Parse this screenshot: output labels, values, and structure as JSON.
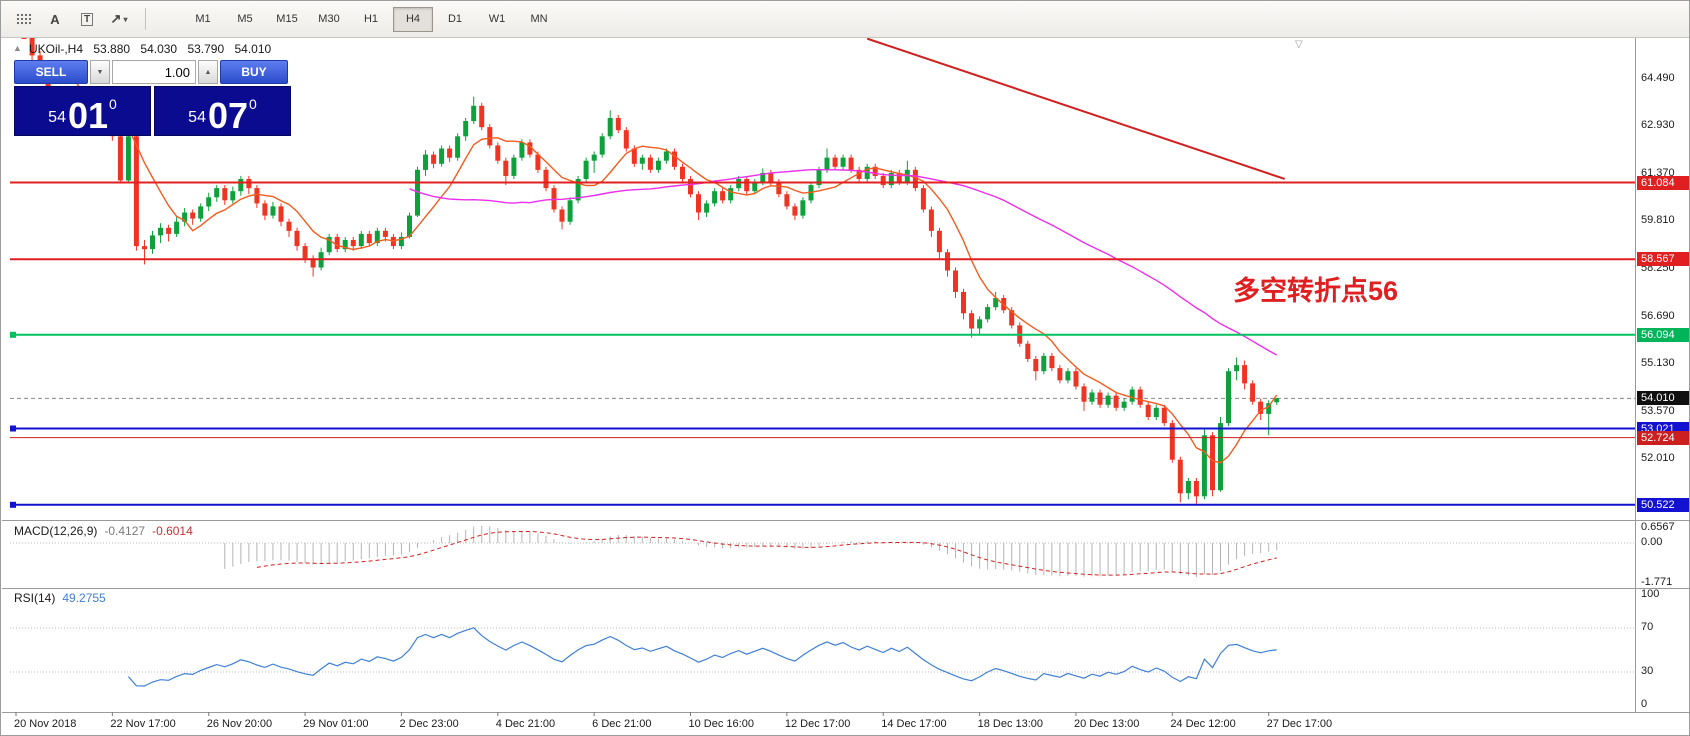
{
  "toolbar": {
    "icons": {
      "grid": "grid",
      "text_tool": "A",
      "label_tool": "T",
      "cursor_tool": "↗",
      "caret": "▾"
    },
    "timeframes": [
      {
        "label": "M1",
        "active": false
      },
      {
        "label": "M5",
        "active": false
      },
      {
        "label": "M15",
        "active": false
      },
      {
        "label": "M30",
        "active": false
      },
      {
        "label": "H1",
        "active": false
      },
      {
        "label": "H4",
        "active": true
      },
      {
        "label": "D1",
        "active": false
      },
      {
        "label": "W1",
        "active": false
      },
      {
        "label": "MN",
        "active": false
      }
    ]
  },
  "chart": {
    "collapse_glyph": "▲",
    "shift_marker_glyph": "▽",
    "symbol_period": "UKOil-,H4",
    "open": "53.880",
    "high": "54.030",
    "low": "53.790",
    "close": "54.010",
    "annotation": {
      "text": "多空转折点56",
      "color": "#e02020"
    }
  },
  "quote": {
    "sell_label": "SELL",
    "buy_label": "BUY",
    "volume": "1.00",
    "dropdown_glyph": "▼",
    "spin_glyph": "▲",
    "sell_price": {
      "whole": "54",
      "pips": "01",
      "pipette": "0"
    },
    "buy_price": {
      "whole": "54",
      "pips": "07",
      "pipette": "0"
    }
  },
  "macd_header": {
    "name": "MACD(12,26,9)",
    "value_main": "-0.4127",
    "value_signal": "-0.6014"
  },
  "rsi_header": {
    "name": "RSI(14)",
    "value": "49.2755"
  },
  "chart_data": {
    "type": "candlestick",
    "symbol": "UKOil-",
    "timeframe": "H4",
    "title": "UKOil-,H4",
    "ohlc_current": {
      "open": 53.88,
      "high": 54.03,
      "low": 53.79,
      "close": 54.01
    },
    "bull_color": "#0fa03c",
    "bear_color": "#ee3524",
    "last_price": 54.01,
    "y_axis_ticks": [
      64.49,
      62.93,
      61.37,
      59.81,
      58.25,
      56.69,
      55.13,
      53.57,
      52.01,
      50.45
    ],
    "x_label_every_n_bars": 12,
    "x_labels": [
      "20 Nov 2018",
      "22 Nov 17:00",
      "26 Nov 20:00",
      "29 Nov 01:00",
      "2 Dec 23:00",
      "4 Dec 21:00",
      "6 Dec 21:00",
      "10 Dec 16:00",
      "12 Dec 17:00",
      "14 Dec 17:00",
      "18 Dec 13:00",
      "20 Dec 13:00",
      "24 Dec 12:00",
      "27 Dec 17:00"
    ],
    "levels": [
      {
        "price": 61.084,
        "color": "#e02020",
        "width": 2,
        "handle": false,
        "tag_bg": "#e02020"
      },
      {
        "price": 58.567,
        "color": "#e02020",
        "width": 2,
        "handle": false,
        "tag_bg": "#e02020"
      },
      {
        "price": 56.094,
        "color": "#00c060",
        "width": 2,
        "handle": true,
        "tag_bg": "#00b45a"
      },
      {
        "price": 53.021,
        "color": "#1212d0",
        "width": 2,
        "handle": true,
        "tag_bg": "#1212d0"
      },
      {
        "price": 52.724,
        "color": "#cc2020",
        "width": 1,
        "handle": false,
        "tag_bg": "#cc2020"
      },
      {
        "price": 50.522,
        "color": "#1212d0",
        "width": 2,
        "handle": true,
        "tag_bg": "#1212d0"
      }
    ],
    "trendline": {
      "from_bar": 106,
      "from_price": 65.8,
      "to_bar": 158,
      "to_price": 61.2,
      "color": "#d02020"
    },
    "moving_averages": [
      {
        "period": 8,
        "color": "#f25c1e"
      },
      {
        "period": 50,
        "color": "#ee2eee"
      }
    ],
    "indicators": {
      "macd": {
        "params": [
          12,
          26,
          9
        ],
        "current": [
          -0.4127,
          -0.6014
        ],
        "hist_color": "#b4b4b4",
        "signal_color": "#d42020",
        "scale": [
          {
            "text": "0.6567",
            "v": 0.6567
          },
          {
            "text": "0.00",
            "v": 0
          },
          {
            "text": "-1.771",
            "v": -1.771
          }
        ]
      },
      "rsi": {
        "period": 14,
        "current": 49.2755,
        "color": "#3f7fd6",
        "levels": [
          70,
          30
        ],
        "scale": [
          {
            "text": "100",
            "v": 100
          },
          {
            "text": "70",
            "v": 70
          },
          {
            "text": "30",
            "v": 30
          },
          {
            "text": "0",
            "v": 0
          }
        ]
      }
    },
    "candles": [
      [
        66.9,
        67.1,
        66.4,
        66.55
      ],
      [
        66.55,
        66.7,
        65.8,
        65.95
      ],
      [
        65.95,
        66.1,
        65.1,
        65.25
      ],
      [
        65.25,
        65.4,
        64.4,
        64.55
      ],
      [
        64.55,
        64.7,
        63.7,
        63.85
      ],
      [
        63.85,
        64.0,
        63.1,
        63.3
      ],
      [
        63.3,
        63.75,
        63.15,
        63.6
      ],
      [
        63.6,
        63.8,
        63.2,
        63.35
      ],
      [
        63.35,
        63.7,
        63.25,
        63.55
      ],
      [
        63.55,
        63.65,
        63.05,
        63.2
      ],
      [
        63.2,
        63.45,
        62.95,
        63.35
      ],
      [
        63.35,
        63.45,
        62.9,
        63.05
      ],
      [
        63.05,
        63.15,
        62.45,
        62.6
      ],
      [
        62.6,
        62.65,
        61.05,
        61.15
      ],
      [
        61.15,
        62.7,
        61.1,
        62.6
      ],
      [
        62.6,
        62.7,
        58.85,
        59.0
      ],
      [
        59.0,
        59.2,
        58.4,
        58.9
      ],
      [
        58.9,
        59.5,
        58.75,
        59.35
      ],
      [
        59.35,
        59.75,
        59.1,
        59.6
      ],
      [
        59.6,
        59.7,
        59.15,
        59.4
      ],
      [
        59.4,
        59.95,
        59.3,
        59.8
      ],
      [
        59.8,
        60.25,
        59.65,
        60.1
      ],
      [
        60.1,
        60.2,
        59.7,
        59.9
      ],
      [
        59.9,
        60.4,
        59.8,
        60.3
      ],
      [
        60.3,
        60.75,
        60.15,
        60.6
      ],
      [
        60.6,
        61.0,
        60.45,
        60.9
      ],
      [
        60.9,
        61.0,
        60.35,
        60.5
      ],
      [
        60.5,
        60.95,
        60.4,
        60.8
      ],
      [
        60.8,
        61.3,
        60.65,
        61.2
      ],
      [
        61.2,
        61.3,
        60.7,
        60.9
      ],
      [
        60.9,
        61.0,
        60.25,
        60.4
      ],
      [
        60.4,
        60.5,
        59.85,
        60.0
      ],
      [
        60.0,
        60.45,
        59.9,
        60.3
      ],
      [
        60.3,
        60.4,
        59.65,
        59.8
      ],
      [
        59.8,
        59.9,
        59.3,
        59.5
      ],
      [
        59.5,
        59.6,
        58.85,
        59.0
      ],
      [
        59.0,
        59.1,
        58.45,
        58.6
      ],
      [
        58.6,
        58.7,
        58.0,
        58.3
      ],
      [
        58.3,
        58.95,
        58.2,
        58.8
      ],
      [
        58.8,
        59.4,
        58.7,
        59.3
      ],
      [
        59.3,
        59.4,
        58.8,
        58.9
      ],
      [
        58.9,
        59.3,
        58.8,
        59.2
      ],
      [
        59.2,
        59.3,
        58.85,
        59.0
      ],
      [
        59.0,
        59.5,
        58.9,
        59.4
      ],
      [
        59.4,
        59.5,
        59.0,
        59.1
      ],
      [
        59.1,
        59.6,
        59.0,
        59.5
      ],
      [
        59.5,
        59.6,
        59.15,
        59.3
      ],
      [
        59.3,
        59.4,
        58.9,
        59.0
      ],
      [
        59.0,
        59.45,
        58.9,
        59.3
      ],
      [
        59.3,
        60.1,
        59.25,
        60.0
      ],
      [
        60.0,
        61.6,
        59.95,
        61.5
      ],
      [
        61.5,
        62.15,
        61.3,
        62.0
      ],
      [
        62.0,
        62.1,
        61.55,
        61.7
      ],
      [
        61.7,
        62.3,
        61.6,
        62.2
      ],
      [
        62.2,
        62.3,
        61.75,
        61.9
      ],
      [
        61.9,
        62.7,
        61.8,
        62.6
      ],
      [
        62.6,
        63.2,
        62.45,
        63.1
      ],
      [
        63.1,
        63.9,
        63.0,
        63.6
      ],
      [
        63.6,
        63.7,
        62.8,
        62.9
      ],
      [
        62.9,
        63.0,
        62.2,
        62.3
      ],
      [
        62.3,
        62.4,
        61.7,
        61.8
      ],
      [
        61.8,
        61.9,
        61.0,
        61.3
      ],
      [
        61.3,
        62.0,
        61.2,
        61.9
      ],
      [
        61.9,
        62.5,
        61.8,
        62.4
      ],
      [
        62.4,
        62.5,
        61.9,
        62.0
      ],
      [
        62.0,
        62.1,
        61.4,
        61.5
      ],
      [
        61.5,
        61.6,
        60.8,
        60.9
      ],
      [
        60.9,
        61.0,
        60.1,
        60.2
      ],
      [
        60.2,
        60.3,
        59.55,
        59.8
      ],
      [
        59.8,
        60.6,
        59.7,
        60.5
      ],
      [
        60.5,
        61.3,
        60.4,
        61.2
      ],
      [
        61.2,
        61.9,
        61.1,
        61.8
      ],
      [
        61.8,
        62.1,
        61.4,
        62.0
      ],
      [
        62.0,
        62.7,
        61.9,
        62.6
      ],
      [
        62.6,
        63.45,
        62.5,
        63.2
      ],
      [
        63.2,
        63.3,
        62.7,
        62.8
      ],
      [
        62.8,
        62.9,
        62.1,
        62.2
      ],
      [
        62.2,
        62.3,
        61.6,
        61.7
      ],
      [
        61.7,
        62.0,
        61.5,
        61.9
      ],
      [
        61.9,
        62.0,
        61.4,
        61.5
      ],
      [
        61.5,
        61.9,
        61.4,
        61.8
      ],
      [
        61.8,
        62.2,
        61.7,
        62.1
      ],
      [
        62.1,
        62.2,
        61.5,
        61.6
      ],
      [
        61.6,
        61.7,
        61.05,
        61.2
      ],
      [
        61.2,
        61.3,
        60.6,
        60.7
      ],
      [
        60.7,
        60.8,
        59.85,
        60.1
      ],
      [
        60.1,
        60.5,
        59.95,
        60.4
      ],
      [
        60.4,
        60.9,
        60.3,
        60.8
      ],
      [
        60.8,
        60.9,
        60.4,
        60.5
      ],
      [
        60.5,
        61.0,
        60.4,
        60.9
      ],
      [
        60.9,
        61.3,
        60.8,
        61.2
      ],
      [
        61.2,
        61.3,
        60.7,
        60.8
      ],
      [
        60.8,
        61.2,
        60.7,
        61.1
      ],
      [
        61.1,
        61.55,
        61.0,
        61.4
      ],
      [
        61.4,
        61.5,
        61.0,
        61.1
      ],
      [
        61.1,
        61.2,
        60.6,
        60.7
      ],
      [
        60.7,
        60.8,
        60.2,
        60.3
      ],
      [
        60.3,
        60.4,
        59.85,
        60.0
      ],
      [
        60.0,
        60.6,
        59.9,
        60.5
      ],
      [
        60.5,
        61.1,
        60.4,
        61.0
      ],
      [
        61.0,
        61.6,
        60.9,
        61.5
      ],
      [
        61.5,
        62.2,
        61.4,
        61.9
      ],
      [
        61.9,
        62.0,
        61.5,
        61.6
      ],
      [
        61.6,
        62.0,
        61.5,
        61.9
      ],
      [
        61.9,
        62.0,
        61.4,
        61.5
      ],
      [
        61.5,
        61.6,
        61.1,
        61.2
      ],
      [
        61.2,
        61.7,
        61.1,
        61.6
      ],
      [
        61.6,
        61.7,
        61.2,
        61.3
      ],
      [
        61.3,
        61.4,
        60.9,
        61.0
      ],
      [
        61.0,
        61.5,
        60.9,
        61.4
      ],
      [
        61.4,
        61.5,
        61.0,
        61.1
      ],
      [
        61.1,
        61.8,
        61.0,
        61.5
      ],
      [
        61.5,
        61.6,
        60.8,
        60.9
      ],
      [
        60.9,
        61.0,
        60.1,
        60.2
      ],
      [
        60.2,
        60.3,
        59.3,
        59.5
      ],
      [
        59.5,
        59.6,
        58.6,
        58.8
      ],
      [
        58.8,
        58.9,
        58.0,
        58.2
      ],
      [
        58.2,
        58.3,
        57.3,
        57.5
      ],
      [
        57.5,
        57.6,
        56.6,
        56.8
      ],
      [
        56.8,
        56.9,
        56.0,
        56.3
      ],
      [
        56.3,
        56.7,
        56.1,
        56.6
      ],
      [
        56.6,
        57.1,
        56.5,
        57.0
      ],
      [
        57.0,
        57.5,
        56.9,
        57.3
      ],
      [
        57.3,
        57.4,
        56.8,
        56.9
      ],
      [
        56.9,
        57.0,
        56.3,
        56.4
      ],
      [
        56.4,
        56.5,
        55.7,
        55.8
      ],
      [
        55.8,
        55.9,
        55.2,
        55.3
      ],
      [
        55.3,
        55.4,
        54.6,
        54.9
      ],
      [
        54.9,
        55.5,
        54.8,
        55.4
      ],
      [
        55.4,
        55.5,
        54.9,
        55.0
      ],
      [
        55.0,
        55.1,
        54.5,
        54.6
      ],
      [
        54.6,
        55.0,
        54.5,
        54.9
      ],
      [
        54.9,
        55.0,
        54.3,
        54.4
      ],
      [
        54.4,
        54.5,
        53.6,
        53.9
      ],
      [
        53.9,
        54.3,
        53.8,
        54.2
      ],
      [
        54.2,
        54.3,
        53.7,
        53.8
      ],
      [
        53.8,
        54.2,
        53.7,
        54.1
      ],
      [
        54.1,
        54.2,
        53.6,
        53.7
      ],
      [
        53.7,
        54.0,
        53.6,
        53.9
      ],
      [
        53.9,
        54.4,
        53.8,
        54.3
      ],
      [
        54.3,
        54.4,
        53.7,
        53.8
      ],
      [
        53.8,
        53.9,
        53.3,
        53.4
      ],
      [
        53.4,
        53.8,
        53.3,
        53.7
      ],
      [
        53.7,
        53.8,
        53.1,
        53.2
      ],
      [
        53.2,
        53.3,
        51.9,
        52.0
      ],
      [
        52.0,
        52.1,
        50.6,
        50.9
      ],
      [
        50.9,
        51.4,
        50.7,
        51.3
      ],
      [
        51.3,
        51.4,
        50.55,
        50.8
      ],
      [
        50.8,
        53.0,
        50.7,
        52.8
      ],
      [
        52.8,
        52.9,
        50.8,
        51.0
      ],
      [
        51.0,
        53.4,
        50.95,
        53.2
      ],
      [
        53.2,
        55.0,
        53.1,
        54.9
      ],
      [
        54.9,
        55.35,
        54.6,
        55.1
      ],
      [
        55.1,
        55.25,
        54.3,
        54.5
      ],
      [
        54.5,
        54.6,
        53.8,
        53.9
      ],
      [
        53.9,
        54.0,
        53.3,
        53.5
      ],
      [
        53.5,
        53.95,
        52.8,
        53.85
      ],
      [
        53.88,
        54.03,
        53.79,
        54.01
      ]
    ]
  }
}
